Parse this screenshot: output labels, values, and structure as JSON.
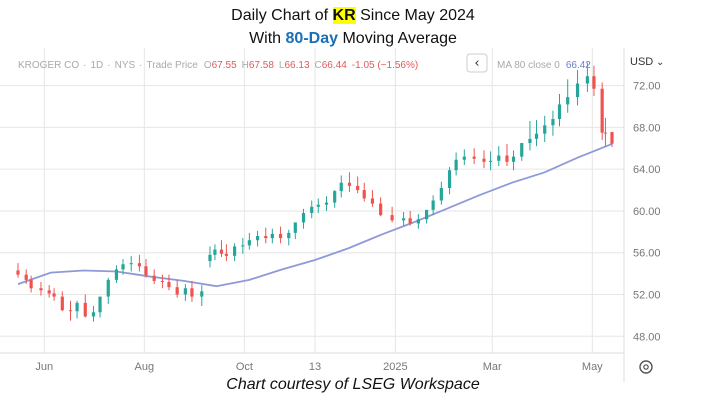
{
  "title": {
    "line1_prefix": "Daily Chart of ",
    "ticker": "KR",
    "line1_suffix": " Since May 2024",
    "line2_prefix": "With ",
    "ma_label": "80-Day",
    "line2_suffix": " Moving Average"
  },
  "legend": {
    "symbol": "KROGER CO",
    "interval": "1D",
    "exchange": "NYS",
    "mode": "Trade Price",
    "o_label": "O",
    "open": "67.55",
    "h_label": "H",
    "high": "67.58",
    "l_label": "L",
    "low": "66.13",
    "c_label": "C",
    "close": "66.44",
    "change": "-1.05 (−1.56%)",
    "ma_text": "MA 80 close 0",
    "ma_value": "66.42",
    "collapse_glyph": "‹",
    "currency": "USD",
    "currency_chevron": "⌄"
  },
  "credit": "Chart courtesy of LSEG Workspace",
  "colors": {
    "up": "#26a69a",
    "down": "#ef5350",
    "ma": "#8e9ad8",
    "highlight": "#ffff00",
    "accent": "#1a6fb5",
    "grid": "#e6e6e6",
    "axis_text": "#777777",
    "legend_text": "#a9a9a9"
  },
  "icons": [
    "chevron-left-icon",
    "chevron-down-icon",
    "settings-icon"
  ],
  "chart_data": {
    "type": "candlestick",
    "title": "Daily Chart of KR Since May 2024 With 80-Day Moving Average",
    "xlabel": "",
    "ylabel": "",
    "y_ticks": [
      48.0,
      52.0,
      56.0,
      60.0,
      64.0,
      68.0,
      72.0
    ],
    "ylim": [
      46.4,
      75.6
    ],
    "xlim": [
      "2024-05-16",
      "2025-05-13"
    ],
    "x_ticks": [
      {
        "date": "2024-06-01",
        "label": "Jun"
      },
      {
        "date": "2024-08-01",
        "label": "Aug"
      },
      {
        "date": "2024-10-01",
        "label": "Oct"
      },
      {
        "date": "2024-11-13",
        "label": "13"
      },
      {
        "date": "2025-01-01",
        "label": "2025"
      },
      {
        "date": "2025-03-01",
        "label": "Mar"
      },
      {
        "date": "2025-05-01",
        "label": "May"
      }
    ],
    "grid": true,
    "series": [
      {
        "name": "KROGER CO",
        "kind": "candles",
        "dates": [
          "2024-05-16",
          "2024-05-21",
          "2024-05-24",
          "2024-05-30",
          "2024-06-04",
          "2024-06-07",
          "2024-06-12",
          "2024-06-17",
          "2024-06-21",
          "2024-06-26",
          "2024-07-01",
          "2024-07-05",
          "2024-07-10",
          "2024-07-15",
          "2024-07-19",
          "2024-07-24",
          "2024-07-29",
          "2024-08-02",
          "2024-08-07",
          "2024-08-12",
          "2024-08-16",
          "2024-08-21",
          "2024-08-26",
          "2024-08-30",
          "2024-09-05",
          "2024-09-10",
          "2024-09-13",
          "2024-09-17",
          "2024-09-20",
          "2024-09-25",
          "2024-09-30",
          "2024-10-04",
          "2024-10-09",
          "2024-10-14",
          "2024-10-18",
          "2024-10-23",
          "2024-10-28",
          "2024-11-01",
          "2024-11-06",
          "2024-11-11",
          "2024-11-15",
          "2024-11-20",
          "2024-11-25",
          "2024-11-29",
          "2024-12-04",
          "2024-12-09",
          "2024-12-13",
          "2024-12-18",
          "2024-12-23",
          "2024-12-30",
          "2025-01-06",
          "2025-01-10",
          "2025-01-15",
          "2025-01-20",
          "2025-01-24",
          "2025-01-29",
          "2025-02-03",
          "2025-02-07",
          "2025-02-12",
          "2025-02-18",
          "2025-02-24",
          "2025-02-28",
          "2025-03-05",
          "2025-03-10",
          "2025-03-14",
          "2025-03-19",
          "2025-03-24",
          "2025-03-28",
          "2025-04-02",
          "2025-04-07",
          "2025-04-11",
          "2025-04-16",
          "2025-04-22",
          "2025-04-28",
          "2025-05-02",
          "2025-05-07",
          "2025-05-09",
          "2025-05-13"
        ],
        "open": [
          54.3,
          53.9,
          53.4,
          52.6,
          52.4,
          52.1,
          51.8,
          50.5,
          50.4,
          51.2,
          49.9,
          50.3,
          51.8,
          53.4,
          54.4,
          54.9,
          55.0,
          54.7,
          53.8,
          53.3,
          53.2,
          52.7,
          52.0,
          52.6,
          51.8,
          55.2,
          55.8,
          56.3,
          55.9,
          55.7,
          56.6,
          56.7,
          57.2,
          57.6,
          57.4,
          57.8,
          57.4,
          57.9,
          58.9,
          59.8,
          60.4,
          60.6,
          60.8,
          61.9,
          62.7,
          62.4,
          62.0,
          61.2,
          60.7,
          59.6,
          59.1,
          59.3,
          58.8,
          59.2,
          60.1,
          61.0,
          62.2,
          63.9,
          64.9,
          65.2,
          65.0,
          64.7,
          64.8,
          65.3,
          64.7,
          65.2,
          66.5,
          66.9,
          67.4,
          68.2,
          68.8,
          70.2,
          70.9,
          72.2,
          72.9,
          71.7,
          67.5,
          67.55
        ],
        "high": [
          55.0,
          54.4,
          53.8,
          53.2,
          52.9,
          52.6,
          52.3,
          51.4,
          51.4,
          52.0,
          50.9,
          51.6,
          53.6,
          54.8,
          55.4,
          55.7,
          55.8,
          55.4,
          54.4,
          53.9,
          53.9,
          53.4,
          53.0,
          53.3,
          52.9,
          56.6,
          56.8,
          57.2,
          56.8,
          56.9,
          57.4,
          57.9,
          58.1,
          58.4,
          58.3,
          58.5,
          58.2,
          58.9,
          60.2,
          61.0,
          61.2,
          61.4,
          62.0,
          63.4,
          63.7,
          63.3,
          62.7,
          62.0,
          61.3,
          60.4,
          59.9,
          60.0,
          59.7,
          60.1,
          61.5,
          62.8,
          64.2,
          65.6,
          65.9,
          66.0,
          65.8,
          65.7,
          66.2,
          66.4,
          65.8,
          66.5,
          68.6,
          68.7,
          69.1,
          69.6,
          71.2,
          72.6,
          73.5,
          74.2,
          73.9,
          72.3,
          68.9,
          67.58
        ],
        "low": [
          53.6,
          53.0,
          52.2,
          51.9,
          51.7,
          51.4,
          50.4,
          49.5,
          49.7,
          49.8,
          49.4,
          49.8,
          51.1,
          53.1,
          53.9,
          54.2,
          54.2,
          53.6,
          53.0,
          52.6,
          52.4,
          51.7,
          51.4,
          51.3,
          50.9,
          54.6,
          55.3,
          55.6,
          55.2,
          55.2,
          55.9,
          56.3,
          56.6,
          56.9,
          56.9,
          56.9,
          56.7,
          57.3,
          58.3,
          59.3,
          59.8,
          60.0,
          60.3,
          61.3,
          61.8,
          61.7,
          60.9,
          60.4,
          59.5,
          58.9,
          58.6,
          58.6,
          58.3,
          58.8,
          59.6,
          60.6,
          61.6,
          63.4,
          64.4,
          64.5,
          64.1,
          63.9,
          64.3,
          64.3,
          63.9,
          64.8,
          65.8,
          66.2,
          66.6,
          67.2,
          68.1,
          69.4,
          70.1,
          71.4,
          71.0,
          66.8,
          66.2,
          66.13
        ],
        "close": [
          53.9,
          53.4,
          52.6,
          52.4,
          52.1,
          51.8,
          50.5,
          50.4,
          51.2,
          49.9,
          50.3,
          51.8,
          53.4,
          54.4,
          54.9,
          55.0,
          54.7,
          53.8,
          53.3,
          53.2,
          52.7,
          52.0,
          52.6,
          51.8,
          52.3,
          55.8,
          56.3,
          55.9,
          55.7,
          56.6,
          56.7,
          57.2,
          57.6,
          57.4,
          57.8,
          57.4,
          57.9,
          58.9,
          59.8,
          60.4,
          60.6,
          60.8,
          61.9,
          62.7,
          62.4,
          62.0,
          61.2,
          60.7,
          59.6,
          59.1,
          59.3,
          58.8,
          59.2,
          60.1,
          61.0,
          62.2,
          63.9,
          64.9,
          65.2,
          65.0,
          64.7,
          64.8,
          65.3,
          64.7,
          65.2,
          66.5,
          66.9,
          67.4,
          68.2,
          68.8,
          70.2,
          70.9,
          72.2,
          72.9,
          71.7,
          67.5,
          67.49,
          66.44
        ]
      },
      {
        "name": "MA 80 close 0",
        "kind": "line",
        "dates": [
          "2024-05-16",
          "2024-06-05",
          "2024-06-25",
          "2024-07-15",
          "2024-08-05",
          "2024-08-25",
          "2024-09-14",
          "2024-10-04",
          "2024-10-24",
          "2024-11-13",
          "2024-12-03",
          "2024-12-23",
          "2025-01-12",
          "2025-02-01",
          "2025-02-21",
          "2025-03-13",
          "2025-04-02",
          "2025-04-22",
          "2025-05-13"
        ],
        "values": [
          53.0,
          54.1,
          54.3,
          54.2,
          53.7,
          53.3,
          52.8,
          53.4,
          54.4,
          55.3,
          56.4,
          57.7,
          58.9,
          60.2,
          61.5,
          62.7,
          63.7,
          65.1,
          66.42
        ]
      }
    ]
  }
}
